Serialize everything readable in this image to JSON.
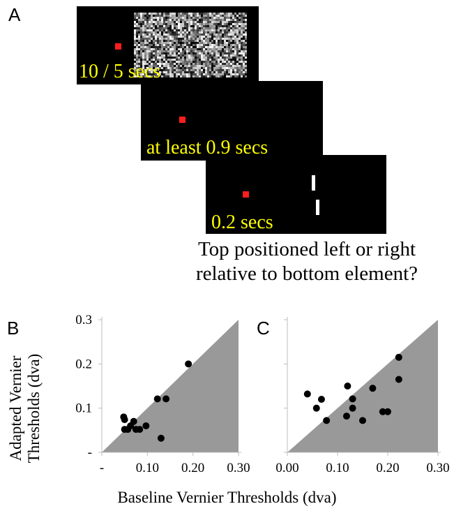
{
  "panel_a": {
    "letter": "A",
    "frames": [
      {
        "caption": "10 / 5 secs",
        "has_noise": true
      },
      {
        "caption": "at least 0.9 secs"
      },
      {
        "caption": "0.2 secs",
        "has_vernier": true
      }
    ],
    "question_lines": [
      "Top positioned left or right",
      "relative to bottom element?"
    ],
    "colors": {
      "screen": "#000000",
      "fixation": "#ff1e1e",
      "caption": "#ffff00",
      "vernier": "#ffffff"
    }
  },
  "panel_b_letter": "B",
  "panel_c_letter": "C",
  "ylabel_lines": [
    "Adapted Vernier",
    "Thresholds (dva)"
  ],
  "xlabel": "Baseline Vernier Thresholds (dva)",
  "chart_data": [
    {
      "type": "scatter",
      "panel": "B",
      "xlim": [
        0,
        0.3
      ],
      "ylim": [
        0,
        0.3
      ],
      "x_ticks": [
        "-",
        "0.10",
        "0.20",
        "0.30"
      ],
      "y_ticks": [
        "-",
        "0.1",
        "0.2",
        "0.3"
      ],
      "shaded_region": "below identity line",
      "shade_color": "#999999",
      "points": [
        {
          "x": 0.048,
          "y": 0.08
        },
        {
          "x": 0.05,
          "y": 0.074
        },
        {
          "x": 0.05,
          "y": 0.052
        },
        {
          "x": 0.057,
          "y": 0.052
        },
        {
          "x": 0.063,
          "y": 0.06
        },
        {
          "x": 0.07,
          "y": 0.07
        },
        {
          "x": 0.075,
          "y": 0.052
        },
        {
          "x": 0.083,
          "y": 0.052
        },
        {
          "x": 0.097,
          "y": 0.06
        },
        {
          "x": 0.122,
          "y": 0.121
        },
        {
          "x": 0.13,
          "y": 0.032
        },
        {
          "x": 0.141,
          "y": 0.121
        },
        {
          "x": 0.19,
          "y": 0.2
        }
      ]
    },
    {
      "type": "scatter",
      "panel": "C",
      "xlim": [
        0,
        0.3
      ],
      "ylim": [
        0,
        0.3
      ],
      "x_ticks": [
        "0.00",
        "0.10",
        "0.20",
        "0.30"
      ],
      "y_ticks": [
        "",
        "",
        "",
        ""
      ],
      "shaded_region": "below identity line",
      "shade_color": "#999999",
      "points": [
        {
          "x": 0.04,
          "y": 0.132
        },
        {
          "x": 0.058,
          "y": 0.1
        },
        {
          "x": 0.068,
          "y": 0.12
        },
        {
          "x": 0.078,
          "y": 0.072
        },
        {
          "x": 0.118,
          "y": 0.082
        },
        {
          "x": 0.12,
          "y": 0.15
        },
        {
          "x": 0.13,
          "y": 0.121
        },
        {
          "x": 0.13,
          "y": 0.1
        },
        {
          "x": 0.15,
          "y": 0.072
        },
        {
          "x": 0.17,
          "y": 0.145
        },
        {
          "x": 0.19,
          "y": 0.092
        },
        {
          "x": 0.2,
          "y": 0.092
        },
        {
          "x": 0.222,
          "y": 0.215
        },
        {
          "x": 0.222,
          "y": 0.165
        }
      ]
    }
  ]
}
